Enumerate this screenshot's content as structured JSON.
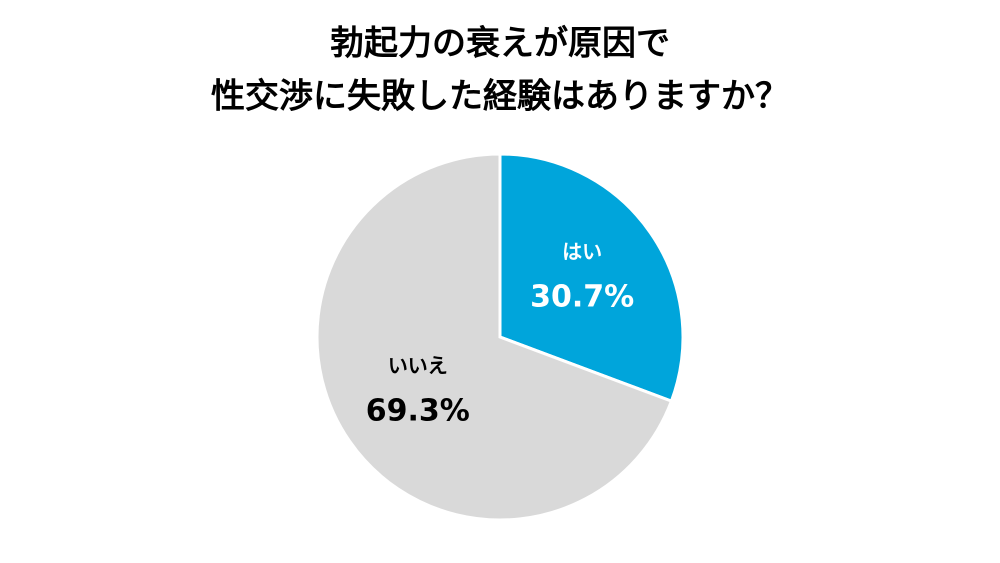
{
  "chart_data": {
    "type": "pie",
    "title": [
      "勃起力の衰えが原因で",
      "性交渉に失敗した経験はありますか？"
    ],
    "categories": [
      "はい",
      "いいえ"
    ],
    "values": [
      30.7,
      69.3
    ],
    "value_labels": [
      "30.7%",
      "69.3%"
    ],
    "colors": [
      "#00a5db",
      "#d9d9d9"
    ],
    "label_colors": [
      "#ffffff",
      "#000000"
    ]
  }
}
